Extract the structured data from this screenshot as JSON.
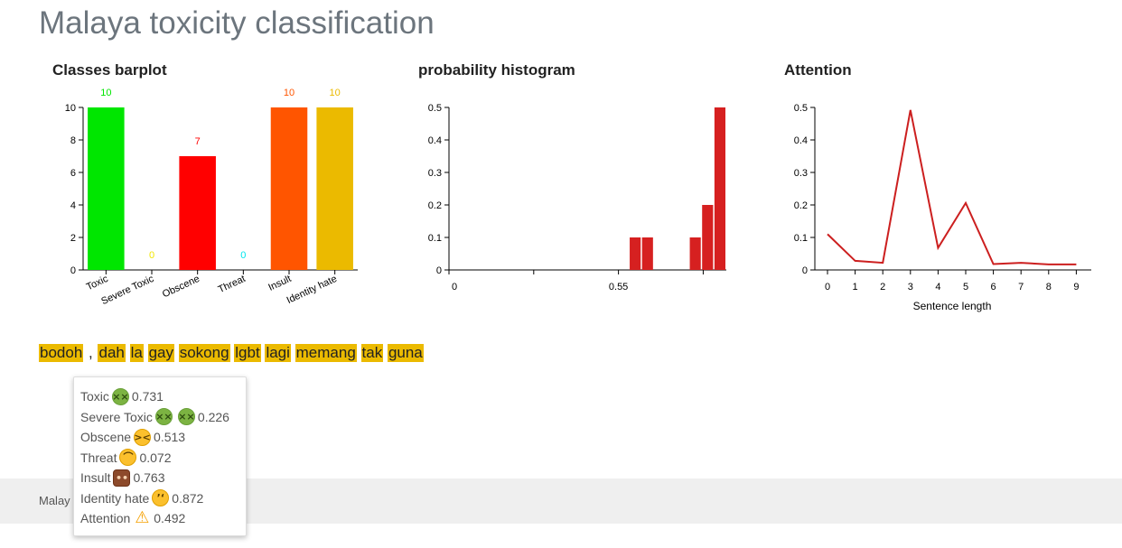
{
  "page": {
    "title": "Malaya toxicity classification"
  },
  "chart_titles": {
    "bar": "Classes barplot",
    "hist": "probability histogram",
    "att": "Attention"
  },
  "chart_data": [
    {
      "type": "bar",
      "categories": [
        "Toxic",
        "Severe Toxic",
        "Obscene",
        "Threat",
        "Insult",
        "Identity hate"
      ],
      "values": [
        10,
        0,
        7,
        0,
        10,
        10
      ],
      "colors": [
        "#00e600",
        "#f2e600",
        "#ff0000",
        "#00e5ee",
        "#ff5500",
        "#ebba00"
      ],
      "yticks": [
        0,
        2,
        4,
        6,
        8,
        10
      ],
      "ylim": [
        0,
        10
      ],
      "title": "Classes barplot",
      "xlabel": "",
      "ylabel": ""
    },
    {
      "type": "bar",
      "title": "probability histogram",
      "bins": [
        {
          "x0": 0.585,
          "x1": 0.625,
          "value": 0.1
        },
        {
          "x0": 0.625,
          "x1": 0.665,
          "value": 0.1
        },
        {
          "x0": 0.78,
          "x1": 0.82,
          "value": 0.1
        },
        {
          "x0": 0.82,
          "x1": 0.86,
          "value": 0.2
        },
        {
          "x0": 0.86,
          "x1": 0.9,
          "value": 0.5
        }
      ],
      "xlim": [
        0,
        0.9
      ],
      "xtick_labels": [
        {
          "value": 0,
          "label": "0"
        },
        {
          "value": 0.55,
          "label": "0.55"
        }
      ],
      "xtick_marks": [
        0,
        0.275,
        0.55,
        0.825
      ],
      "yticks": [
        0,
        0.1,
        0.2,
        0.3,
        0.4,
        0.5
      ],
      "ylim": [
        0,
        0.5
      ],
      "color": "#d62020",
      "xlabel": "",
      "ylabel": ""
    },
    {
      "type": "line",
      "title": "Attention",
      "x": [
        0,
        1,
        2,
        3,
        4,
        5,
        6,
        7,
        8,
        9
      ],
      "y": [
        0.11,
        0.028,
        0.022,
        0.492,
        0.068,
        0.206,
        0.018,
        0.022,
        0.017,
        0.017
      ],
      "xticks": [
        0,
        1,
        2,
        3,
        4,
        5,
        6,
        7,
        8,
        9
      ],
      "yticks": [
        0,
        0.1,
        0.2,
        0.3,
        0.4,
        0.5
      ],
      "ylim": [
        0,
        0.5
      ],
      "color": "#cc1f1f",
      "xlabel": "Sentence length",
      "ylabel": ""
    }
  ],
  "sentence": {
    "tokens": [
      {
        "text": "bodoh",
        "highlight": true
      },
      {
        "text": ",",
        "highlight": false
      },
      {
        "text": "dah",
        "highlight": true
      },
      {
        "text": "la",
        "highlight": true
      },
      {
        "text": "gay",
        "highlight": true
      },
      {
        "text": "sokong",
        "highlight": true
      },
      {
        "text": "lgbt",
        "highlight": true
      },
      {
        "text": "lagi",
        "highlight": true
      },
      {
        "text": "memang",
        "highlight": true
      },
      {
        "text": "tak",
        "highlight": true
      },
      {
        "text": "guna",
        "highlight": true
      }
    ],
    "highlight_color": "#ebba00"
  },
  "tooltip": {
    "rows": [
      {
        "label": "Toxic",
        "icons": [
          "nauseated-face-icon"
        ],
        "value": "0.731"
      },
      {
        "label": "Severe Toxic",
        "icons": [
          "nauseated-face-icon",
          "nauseated-face-icon"
        ],
        "value": "0.226"
      },
      {
        "label": "Obscene",
        "icons": [
          "confounded-face-icon"
        ],
        "value": "0.513"
      },
      {
        "label": "Threat",
        "icons": [
          "anxious-face-icon"
        ],
        "value": "0.072"
      },
      {
        "label": "Insult",
        "icons": [
          "boar-icon"
        ],
        "value": "0.763"
      },
      {
        "label": "Identity hate",
        "icons": [
          "crying-face-icon"
        ],
        "value": "0.872"
      },
      {
        "label": "Attention",
        "icons": [
          "warning-icon"
        ],
        "value": "0.492"
      }
    ]
  },
  "footer": {
    "text": "Malay"
  }
}
